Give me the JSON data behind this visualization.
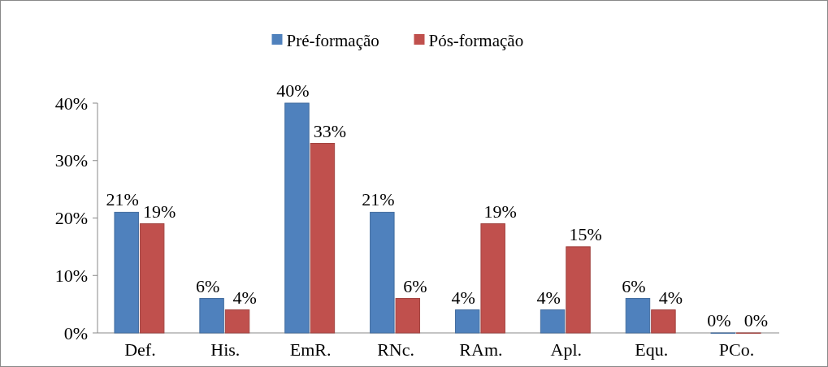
{
  "chart_data": {
    "type": "bar",
    "categories": [
      "Def.",
      "His.",
      "EmR.",
      "RNc.",
      "RAm.",
      "Apl.",
      "Equ.",
      "PCo."
    ],
    "series": [
      {
        "name": "Pré-formação",
        "color": "#4f81bd",
        "values": [
          21,
          6,
          40,
          21,
          4,
          4,
          6,
          0
        ],
        "value_labels": [
          "21%",
          "6%",
          "40%",
          "21%",
          "4%",
          "4%",
          "6%",
          "0%"
        ]
      },
      {
        "name": "Pós-formação",
        "color": "#c0504d",
        "values": [
          19,
          4,
          33,
          6,
          19,
          15,
          4,
          0
        ],
        "value_labels": [
          "19%",
          "4%",
          "33%",
          "6%",
          "19%",
          "15%",
          "4%",
          "0%"
        ]
      }
    ],
    "ylim": [
      0,
      40
    ],
    "yticks": [
      {
        "value": 0,
        "label": "0%"
      },
      {
        "value": 10,
        "label": "10%"
      },
      {
        "value": 20,
        "label": "20%"
      },
      {
        "value": 30,
        "label": "30%"
      },
      {
        "value": 40,
        "label": "40%"
      }
    ],
    "grid": false,
    "legend": "top"
  }
}
